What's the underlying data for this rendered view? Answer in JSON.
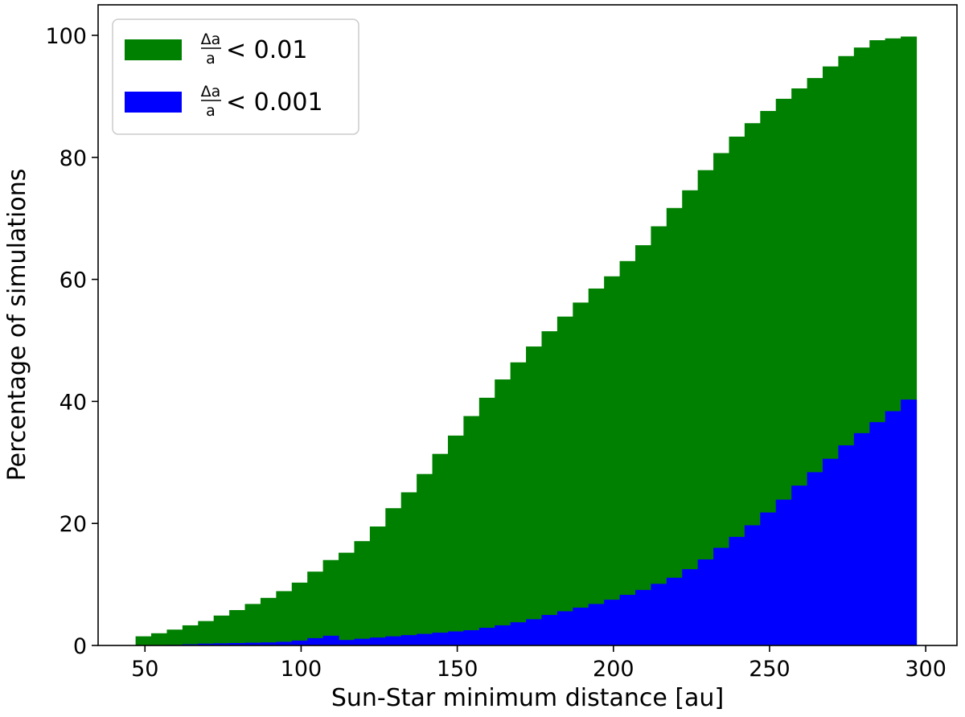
{
  "chart_data": {
    "type": "bar",
    "xlabel": "Sun-Star minimum distance [au]",
    "ylabel": "Percentage of simulations",
    "xlim": [
      35,
      310
    ],
    "ylim": [
      0,
      105
    ],
    "xticks": [
      50,
      100,
      150,
      200,
      250,
      300
    ],
    "yticks": [
      0,
      20,
      40,
      60,
      80,
      100
    ],
    "legend_position": "top-left",
    "bin_edges": [
      47,
      52,
      57,
      62,
      67,
      72,
      77,
      82,
      87,
      92,
      97,
      102,
      107,
      112,
      117,
      122,
      127,
      132,
      137,
      142,
      147,
      152,
      157,
      162,
      167,
      172,
      177,
      182,
      187,
      192,
      197,
      202,
      207,
      212,
      217,
      222,
      227,
      232,
      237,
      242,
      247,
      252,
      257,
      262,
      267,
      272,
      277,
      282,
      287,
      292,
      297
    ],
    "series": [
      {
        "name": "Δa/a < 0.01",
        "legend_numerator": "Δa",
        "legend_denominator": "a",
        "legend_suffix": "< 0.01",
        "color": "#008000",
        "values": [
          1.5,
          2.0,
          2.6,
          3.3,
          4.0,
          4.9,
          5.8,
          6.8,
          7.8,
          8.9,
          10.3,
          12.1,
          14.0,
          15.2,
          17.1,
          19.5,
          22.5,
          25.1,
          28.1,
          31.4,
          34.4,
          37.6,
          40.6,
          43.6,
          46.4,
          49.0,
          51.5,
          53.9,
          56.2,
          58.5,
          60.5,
          63.0,
          65.6,
          68.7,
          71.7,
          74.6,
          77.9,
          80.7,
          83.4,
          85.6,
          87.6,
          89.6,
          91.3,
          93.0,
          94.9,
          96.6,
          98.0,
          99.2,
          99.5,
          99.8
        ]
      },
      {
        "name": "Δa/a < 0.001",
        "legend_numerator": "Δa",
        "legend_denominator": "a",
        "legend_suffix": "< 0.001",
        "color": "#0000ff",
        "values": [
          0.0,
          0.0,
          0.1,
          0.2,
          0.3,
          0.35,
          0.4,
          0.45,
          0.5,
          0.6,
          0.8,
          1.2,
          1.6,
          0.9,
          1.1,
          1.3,
          1.5,
          1.7,
          1.9,
          2.1,
          2.3,
          2.5,
          2.9,
          3.3,
          3.8,
          4.3,
          5.0,
          5.6,
          6.2,
          6.8,
          7.5,
          8.3,
          9.1,
          10.1,
          11.1,
          12.5,
          14.1,
          16.0,
          17.8,
          19.7,
          21.8,
          23.9,
          26.2,
          28.4,
          30.6,
          32.8,
          34.8,
          36.6,
          38.4,
          40.3
        ]
      }
    ]
  }
}
